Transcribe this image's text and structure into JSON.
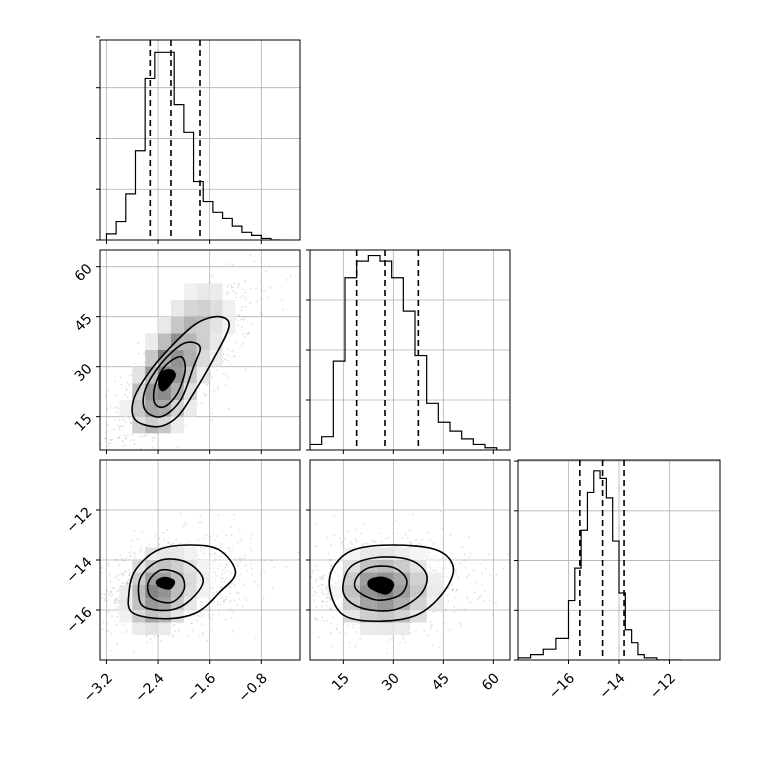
{
  "chart_data": {
    "type": "corner",
    "grid": true,
    "colors": {
      "line": "#000000",
      "grid": "#b0b0b0",
      "density_min": "#ffffff",
      "density_max": "#000000"
    },
    "parameters": [
      {
        "range": [
          -3.3,
          -0.2
        ],
        "ticks": [
          -3.2,
          -2.4,
          -1.6,
          -0.8
        ],
        "tick_labels": [
          "−3.2",
          "−2.4",
          "−1.6",
          "−0.8"
        ]
      },
      {
        "range": [
          5,
          65
        ],
        "ticks": [
          15,
          30,
          45,
          60
        ],
        "tick_labels": [
          "15",
          "30",
          "45",
          "60"
        ]
      },
      {
        "range": [
          -18,
          -10
        ],
        "ticks": [
          -16,
          -14,
          -12
        ],
        "tick_labels": [
          "−16",
          "−14",
          "−12"
        ]
      }
    ],
    "histograms": [
      {
        "param": 0,
        "bin_edges": [
          -3.2,
          -3.05,
          -2.9,
          -2.75,
          -2.6,
          -2.45,
          -2.3,
          -2.15,
          -2.0,
          -1.85,
          -1.7,
          -1.55,
          -1.4,
          -1.25,
          -1.1,
          -0.95,
          -0.8,
          -0.65,
          -0.5
        ],
        "counts": [
          4,
          12,
          30,
          58,
          105,
          122,
          122,
          88,
          70,
          38,
          25,
          18,
          14,
          9,
          5,
          3,
          1,
          0
        ],
        "quantiles": [
          -2.52,
          -2.2,
          -1.75
        ],
        "ylim": [
          0,
          130
        ],
        "yticks": [
          0,
          33,
          66,
          99,
          132
        ]
      },
      {
        "param": 1,
        "bin_edges": [
          5,
          8.5,
          12,
          15.5,
          19,
          22.5,
          26,
          29.5,
          33,
          36.5,
          40,
          43.5,
          47,
          50.5,
          54,
          57.5,
          61
        ],
        "counts": [
          5,
          12,
          80,
          155,
          170,
          175,
          170,
          155,
          125,
          85,
          42,
          25,
          17,
          10,
          5,
          2
        ],
        "quantiles": [
          19,
          27.5,
          37.5
        ],
        "ylim": [
          0,
          180
        ],
        "yticks": [
          0,
          45,
          90,
          135,
          180
        ]
      },
      {
        "param": 2,
        "bin_edges": [
          -18,
          -17.5,
          -17.0,
          -16.5,
          -16.0,
          -15.75,
          -15.5,
          -15.25,
          -15.0,
          -14.75,
          -14.5,
          -14.25,
          -14.0,
          -13.75,
          -13.5,
          -13.25,
          -13.0,
          -12.5,
          -12.0,
          -11.5
        ],
        "counts": [
          2,
          5,
          10,
          20,
          55,
          85,
          120,
          155,
          175,
          168,
          150,
          110,
          62,
          28,
          16,
          5,
          2,
          0,
          0
        ],
        "quantiles": [
          -15.55,
          -14.65,
          -13.8
        ],
        "ylim": [
          0,
          185
        ],
        "yticks": [
          0,
          46,
          92,
          138,
          184
        ]
      }
    ],
    "density_panels": [
      {
        "x_param": 0,
        "y_param": 1,
        "x_bins": [
          -3.0,
          -2.8,
          -2.6,
          -2.4,
          -2.2,
          -2.0,
          -1.8,
          -1.6,
          -1.4,
          -1.2,
          -1.0
        ],
        "y_bins": [
          10,
          15,
          20,
          25,
          30,
          35,
          40,
          45,
          50,
          55,
          60
        ],
        "density": [
          [
            0.05,
            0.25,
            0.4,
            0.3,
            0.1,
            0.02,
            0,
            0,
            0,
            0
          ],
          [
            0.08,
            0.45,
            0.75,
            0.7,
            0.35,
            0.1,
            0.02,
            0,
            0,
            0
          ],
          [
            0.03,
            0.35,
            0.85,
            0.95,
            0.65,
            0.25,
            0.06,
            0.01,
            0,
            0
          ],
          [
            0.01,
            0.15,
            0.55,
            1.0,
            0.85,
            0.45,
            0.15,
            0.04,
            0,
            0
          ],
          [
            0,
            0.05,
            0.3,
            0.7,
            0.9,
            0.65,
            0.3,
            0.1,
            0.02,
            0
          ],
          [
            0,
            0.01,
            0.1,
            0.35,
            0.6,
            0.6,
            0.4,
            0.18,
            0.05,
            0
          ],
          [
            0,
            0,
            0.03,
            0.12,
            0.3,
            0.42,
            0.38,
            0.22,
            0.08,
            0.01
          ],
          [
            0,
            0,
            0,
            0.04,
            0.12,
            0.22,
            0.25,
            0.18,
            0.08,
            0.02
          ],
          [
            0,
            0,
            0,
            0,
            0.03,
            0.08,
            0.12,
            0.1,
            0.05,
            0.02
          ],
          [
            0,
            0,
            0,
            0,
            0,
            0.02,
            0.04,
            0.05,
            0.03,
            0.01
          ]
        ],
        "contours": [
          [
            [
              -2.4,
              12
            ],
            [
              -2.1,
              15
            ],
            [
              -1.85,
              22
            ],
            [
              -1.55,
              32
            ],
            [
              -1.3,
              42
            ],
            [
              -1.45,
              45
            ],
            [
              -1.8,
              43
            ],
            [
              -2.2,
              36
            ],
            [
              -2.55,
              28
            ],
            [
              -2.78,
              20
            ],
            [
              -2.75,
              14
            ]
          ],
          [
            [
              -2.35,
              15
            ],
            [
              -2.05,
              20
            ],
            [
              -1.85,
              30
            ],
            [
              -1.75,
              36
            ],
            [
              -2.0,
              37
            ],
            [
              -2.35,
              31
            ],
            [
              -2.6,
              23
            ],
            [
              -2.6,
              17
            ]
          ],
          [
            [
              -2.3,
              18
            ],
            [
              -2.1,
              22
            ],
            [
              -1.98,
              29
            ],
            [
              -2.05,
              33
            ],
            [
              -2.3,
              30
            ],
            [
              -2.45,
              24
            ],
            [
              -2.45,
              19
            ]
          ],
          [
            [
              -2.3,
              23
            ],
            [
              -2.14,
              27
            ],
            [
              -2.2,
              29
            ],
            [
              -2.36,
              28
            ],
            [
              -2.38,
              24
            ]
          ]
        ],
        "scatter_samples": 900,
        "scatter_center": [
          -2.1,
          28
        ],
        "scatter_spread": [
          0.45,
          10
        ],
        "scatter_correlation": 0.78
      },
      {
        "x_param": 0,
        "y_param": 2,
        "x_bins": [
          -3.0,
          -2.8,
          -2.6,
          -2.4,
          -2.2,
          -2.0,
          -1.8,
          -1.6,
          -1.4,
          -1.2
        ],
        "y_bins": [
          -17.0,
          -16.5,
          -16.0,
          -15.5,
          -15.0,
          -14.5,
          -14.0,
          -13.5,
          -13.0,
          -12.5
        ],
        "density": [
          [
            0.02,
            0.1,
            0.15,
            0.1,
            0.04,
            0.01,
            0,
            0,
            0
          ],
          [
            0.08,
            0.3,
            0.5,
            0.4,
            0.2,
            0.06,
            0.01,
            0,
            0
          ],
          [
            0.12,
            0.5,
            0.85,
            0.75,
            0.45,
            0.18,
            0.05,
            0.01,
            0
          ],
          [
            0.1,
            0.55,
            1.0,
            0.9,
            0.55,
            0.28,
            0.1,
            0.03,
            0
          ],
          [
            0.05,
            0.4,
            0.8,
            0.8,
            0.55,
            0.3,
            0.12,
            0.04,
            0.01
          ],
          [
            0.02,
            0.2,
            0.45,
            0.5,
            0.4,
            0.22,
            0.09,
            0.03,
            0
          ],
          [
            0,
            0.06,
            0.15,
            0.2,
            0.18,
            0.1,
            0.04,
            0.01,
            0
          ],
          [
            0,
            0.01,
            0.04,
            0.06,
            0.05,
            0.03,
            0.01,
            0,
            0
          ],
          [
            0,
            0,
            0.01,
            0.01,
            0.01,
            0,
            0,
            0,
            0
          ]
        ],
        "contours": [
          [
            [
              -2.8,
              -16.1
            ],
            [
              -2.3,
              -16.35
            ],
            [
              -1.8,
              -16.1
            ],
            [
              -1.45,
              -15.3
            ],
            [
              -1.2,
              -14.5
            ],
            [
              -1.45,
              -13.6
            ],
            [
              -1.9,
              -13.4
            ],
            [
              -2.4,
              -13.6
            ],
            [
              -2.75,
              -14.4
            ],
            [
              -2.85,
              -15.3
            ]
          ],
          [
            [
              -2.6,
              -15.9
            ],
            [
              -2.2,
              -16.0
            ],
            [
              -1.9,
              -15.6
            ],
            [
              -1.7,
              -14.8
            ],
            [
              -1.95,
              -14.1
            ],
            [
              -2.35,
              -14.0
            ],
            [
              -2.65,
              -14.6
            ],
            [
              -2.7,
              -15.4
            ]
          ],
          [
            [
              -2.5,
              -15.5
            ],
            [
              -2.2,
              -15.7
            ],
            [
              -2.0,
              -15.2
            ],
            [
              -2.05,
              -14.6
            ],
            [
              -2.35,
              -14.4
            ],
            [
              -2.55,
              -14.9
            ]
          ],
          [
            [
              -2.38,
              -15.05
            ],
            [
              -2.22,
              -15.15
            ],
            [
              -2.15,
              -14.85
            ],
            [
              -2.3,
              -14.7
            ],
            [
              -2.42,
              -14.85
            ]
          ]
        ],
        "scatter_samples": 900,
        "scatter_center": [
          -2.1,
          -14.9
        ],
        "scatter_spread": [
          0.45,
          0.75
        ],
        "scatter_correlation": 0.25
      },
      {
        "x_param": 1,
        "y_param": 2,
        "x_bins": [
          10,
          15,
          20,
          25,
          30,
          35,
          40,
          45,
          50,
          55
        ],
        "y_bins": [
          -17.0,
          -16.5,
          -16.0,
          -15.5,
          -15.0,
          -14.5,
          -14.0,
          -13.5,
          -13.0,
          -12.5
        ],
        "density": [
          [
            0.01,
            0.05,
            0.1,
            0.12,
            0.1,
            0.05,
            0.02,
            0.01,
            0
          ],
          [
            0.03,
            0.2,
            0.4,
            0.45,
            0.35,
            0.18,
            0.06,
            0.02,
            0
          ],
          [
            0.06,
            0.4,
            0.75,
            0.85,
            0.65,
            0.35,
            0.12,
            0.03,
            0
          ],
          [
            0.08,
            0.5,
            0.9,
            1.0,
            0.8,
            0.45,
            0.16,
            0.04,
            0.01
          ],
          [
            0.06,
            0.42,
            0.8,
            0.88,
            0.7,
            0.38,
            0.13,
            0.03,
            0
          ],
          [
            0.03,
            0.25,
            0.5,
            0.55,
            0.42,
            0.22,
            0.07,
            0.02,
            0
          ],
          [
            0.01,
            0.08,
            0.18,
            0.2,
            0.15,
            0.08,
            0.03,
            0.01,
            0
          ],
          [
            0,
            0.02,
            0.04,
            0.05,
            0.04,
            0.02,
            0.01,
            0,
            0
          ],
          [
            0,
            0,
            0.01,
            0.01,
            0.01,
            0,
            0,
            0,
            0
          ]
        ],
        "contours": [
          [
            [
              11,
              -15.2
            ],
            [
              15,
              -16.2
            ],
            [
              25,
              -16.45
            ],
            [
              37,
              -16.2
            ],
            [
              45,
              -15.3
            ],
            [
              48,
              -14.3
            ],
            [
              43,
              -13.6
            ],
            [
              30,
              -13.4
            ],
            [
              18,
              -13.6
            ],
            [
              12,
              -14.3
            ]
          ],
          [
            [
              15,
              -15.3
            ],
            [
              20,
              -15.9
            ],
            [
              30,
              -16.0
            ],
            [
              38,
              -15.4
            ],
            [
              40,
              -14.6
            ],
            [
              35,
              -14.0
            ],
            [
              25,
              -13.9
            ],
            [
              17,
              -14.3
            ]
          ],
          [
            [
              19,
              -15.2
            ],
            [
              25,
              -15.6
            ],
            [
              32,
              -15.4
            ],
            [
              34,
              -14.8
            ],
            [
              30,
              -14.3
            ],
            [
              23,
              -14.3
            ],
            [
              19,
              -14.7
            ]
          ],
          [
            [
              23,
              -15.1
            ],
            [
              28,
              -15.35
            ],
            [
              30,
              -14.95
            ],
            [
              27,
              -14.7
            ],
            [
              23,
              -14.8
            ]
          ]
        ],
        "scatter_samples": 900,
        "scatter_center": [
          27,
          -14.9
        ],
        "scatter_spread": [
          10,
          0.75
        ],
        "scatter_correlation": 0.0
      }
    ]
  }
}
